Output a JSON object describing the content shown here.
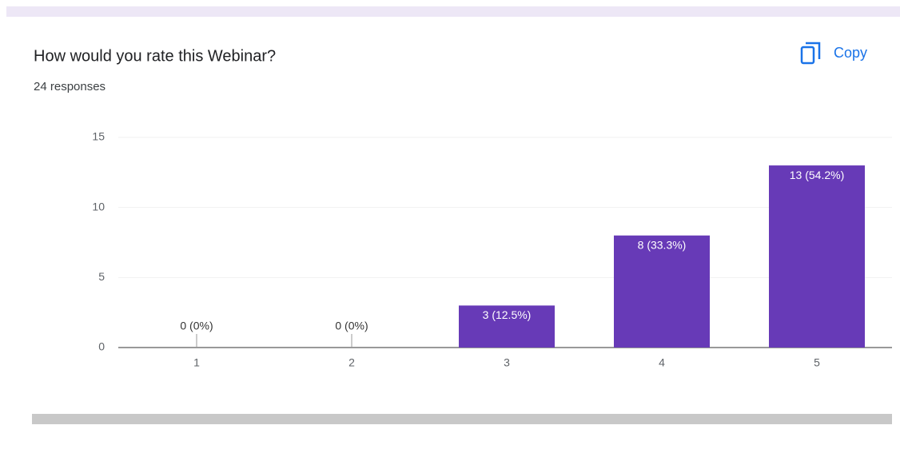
{
  "chart_data": {
    "type": "bar",
    "title": "How would you rate this Webinar?",
    "subtitle": "24 responses",
    "categories": [
      "1",
      "2",
      "3",
      "4",
      "5"
    ],
    "values": [
      0,
      0,
      3,
      8,
      13
    ],
    "value_labels": [
      "0 (0%)",
      "0 (0%)",
      "3 (12.5%)",
      "8 (33.3%)",
      "13 (54.2%)"
    ],
    "color": "#673ab7",
    "ylim": [
      0,
      15
    ],
    "yticks": [
      0,
      5,
      10,
      15
    ],
    "grid": true
  },
  "copy_button": "Copy"
}
